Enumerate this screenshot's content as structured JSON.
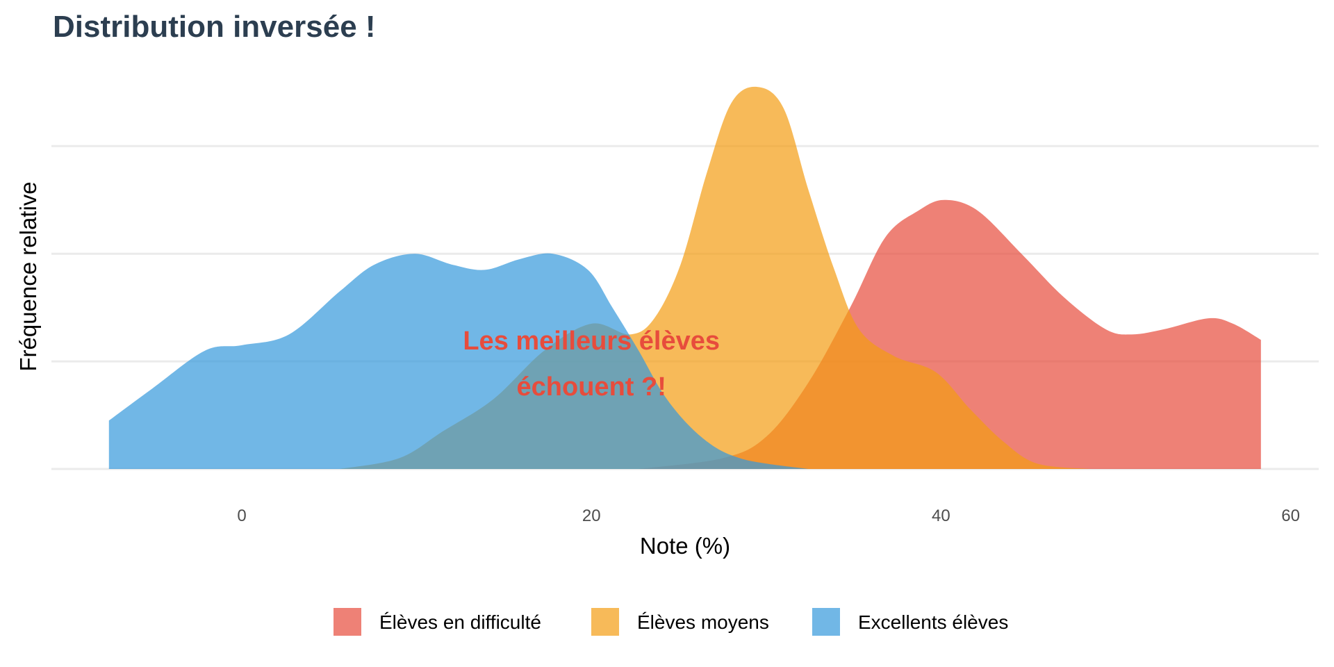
{
  "chart_data": {
    "type": "area",
    "title": "Distribution inversée !",
    "xlabel": "Note (%)",
    "ylabel": "Fréquence relative",
    "xlim": [
      -10,
      62
    ],
    "ylim": [
      0,
      0.075
    ],
    "xticks": [
      0,
      20,
      40,
      60
    ],
    "xtick_labels": [
      "0",
      "20",
      "40",
      "60"
    ],
    "ygrid": [
      0,
      0.02,
      0.04,
      0.06
    ],
    "grid": true,
    "legend_position": "bottom",
    "annotation": {
      "lines": [
        "Les meilleurs élèves",
        "échouent ?!"
      ],
      "x": 20,
      "y": 0.024,
      "color": "#e74c3c"
    },
    "series": [
      {
        "name": "Élèves en difficulté",
        "color": "#e74c3c",
        "x": [
          22.7,
          27.5,
          30,
          32.4,
          34.8,
          36.8,
          38.7,
          40.2,
          42.1,
          44.6,
          47,
          49.4,
          50.9,
          52.8,
          55.3,
          56.7,
          58.3
        ],
        "y": [
          0,
          0.002,
          0.006,
          0.016,
          0.03,
          0.043,
          0.048,
          0.05,
          0.048,
          0.04,
          0.032,
          0.026,
          0.025,
          0.026,
          0.028,
          0.027,
          0.024
        ]
      },
      {
        "name": "Élèves moyens",
        "color": "#f39c12",
        "x": [
          5.6,
          9,
          11.5,
          14.4,
          17.3,
          20,
          22.2,
          23.6,
          25.1,
          26.6,
          28,
          29.5,
          31,
          32.4,
          33.9,
          35.3,
          37.3,
          39.7,
          41.7,
          43.6,
          45.5,
          48.5
        ],
        "y": [
          0,
          0.002,
          0.007,
          0.013,
          0.022,
          0.027,
          0.025,
          0.028,
          0.038,
          0.055,
          0.068,
          0.071,
          0.067,
          0.052,
          0.037,
          0.026,
          0.021,
          0.018,
          0.011,
          0.005,
          0.001,
          0
        ]
      },
      {
        "name": "Excellents élèves",
        "color": "#3498db",
        "x": [
          -7.6,
          -5.1,
          -2.1,
          0,
          2.7,
          5.6,
          7.6,
          9.9,
          12,
          13.9,
          15.9,
          17.8,
          19.8,
          21.2,
          22.7,
          24.1,
          25.6,
          27.1,
          28.5,
          30,
          32.4
        ],
        "y": [
          0.009,
          0.015,
          0.022,
          0.023,
          0.025,
          0.033,
          0.038,
          0.04,
          0.038,
          0.037,
          0.039,
          0.04,
          0.037,
          0.03,
          0.022,
          0.014,
          0.008,
          0.004,
          0.002,
          0.001,
          0
        ]
      }
    ]
  }
}
